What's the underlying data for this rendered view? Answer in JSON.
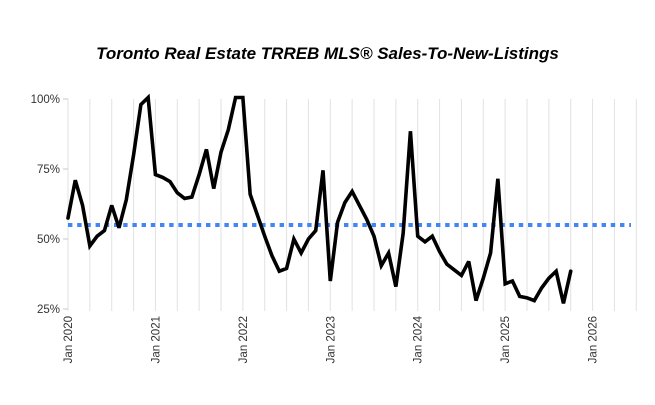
{
  "title": "Toronto Real Estate TRREB MLS® Sales-To-New-Listings",
  "chart_data": {
    "type": "line",
    "title": "Toronto Real Estate TRREB MLS® Sales-To-New-Listings",
    "xlabel": "",
    "ylabel": "",
    "x_axis": {
      "tick_labels": [
        "Jan 2020",
        "Jan 2021",
        "Jan 2022",
        "Jan 2023",
        "Jan 2024",
        "Jan 2025",
        "Jan 2026"
      ],
      "minor_gridlines": "quarterly"
    },
    "y_axis": {
      "tick_labels": [
        "100%",
        "75%",
        "50%",
        "25%"
      ],
      "tick_values": [
        100,
        75,
        50,
        25
      ],
      "min": 25,
      "max": 100,
      "unit": "%"
    },
    "grid": {
      "vertical": true,
      "horizontal": false
    },
    "legend": "none",
    "colors": {
      "line": "#000000",
      "average_line": "#4285f4",
      "gridline": "#e2e2e2",
      "tick": "#c9c9c9",
      "axis_text": "#333333",
      "title_text": "#000000"
    },
    "series": [
      {
        "name": "sales-to-new-listings-ratio",
        "type": "line",
        "color": "#000000",
        "stroke_style": "solid",
        "frequency": "monthly",
        "start_month": "2020-01",
        "end_month": "2025-10",
        "clip_note": "values above 100% are clipped at the top of the plot",
        "values_percent": [
          57.5,
          71,
          62,
          47.5,
          51,
          53,
          62,
          54,
          64,
          80,
          98,
          108,
          73,
          72,
          70.5,
          66.5,
          64.5,
          65,
          73,
          82,
          68,
          81,
          89,
          115,
          102,
          66,
          58.5,
          51,
          44,
          38.5,
          39.5,
          50,
          45,
          50,
          53,
          74.5,
          35,
          56,
          63,
          67,
          62,
          57,
          51,
          40.5,
          45,
          33,
          52,
          88.5,
          51,
          49,
          51,
          45.5,
          41,
          39,
          37,
          42,
          28,
          36,
          45,
          71.5,
          34,
          35,
          29.5,
          29,
          28,
          32.5,
          36,
          38.5,
          27,
          38.5
        ]
      },
      {
        "name": "average-reference-line",
        "type": "horizontal-dotted-line",
        "color": "#4285f4",
        "value_percent": 55
      }
    ]
  }
}
